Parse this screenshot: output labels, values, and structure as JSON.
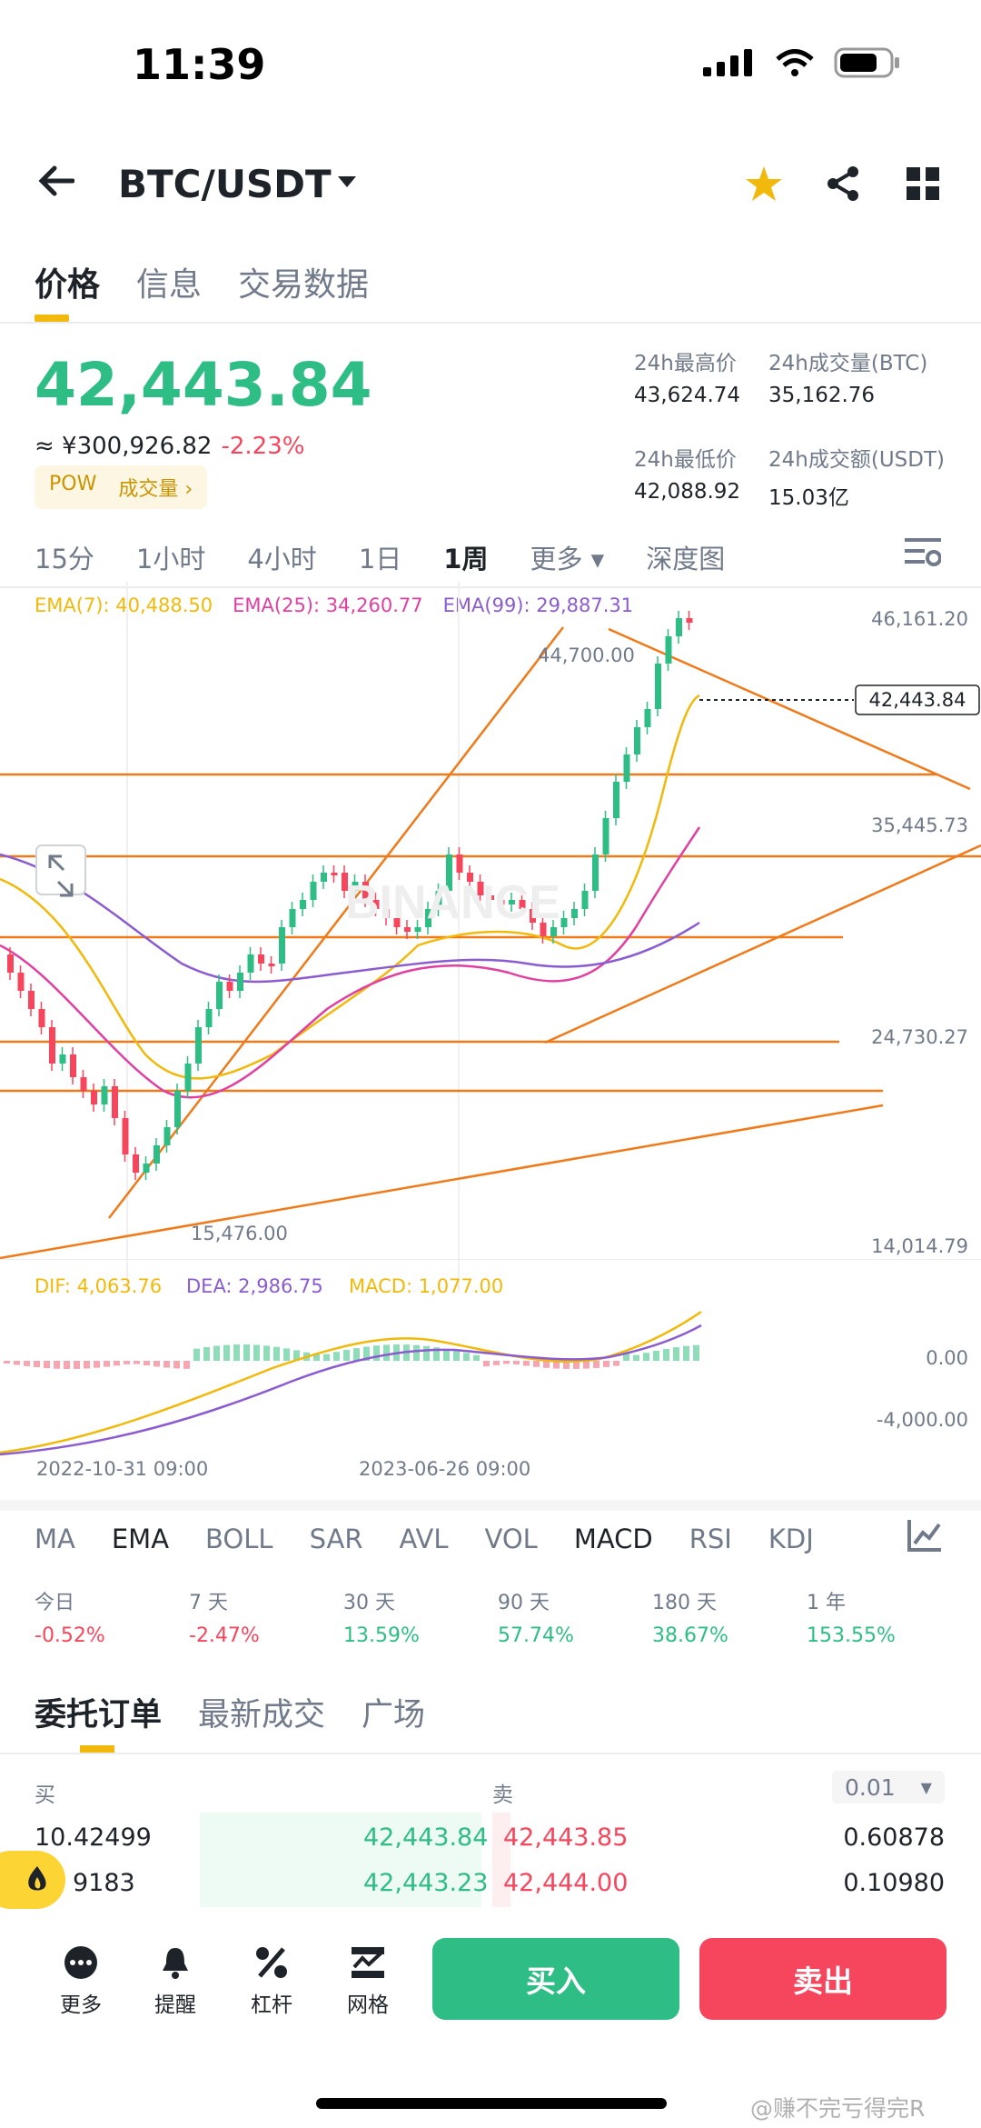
{
  "status": {
    "time": "11:39"
  },
  "header": {
    "pair": "BTC/USDT"
  },
  "tabs": [
    "价格",
    "信息",
    "交易数据"
  ],
  "price": {
    "last": "42,443.84",
    "cny": "≈ ¥300,926.82",
    "change": "-2.23%",
    "tag_pow": "POW",
    "tag_volume": "成交量 ›"
  },
  "stats": [
    {
      "label": "24h最高价",
      "value": "43,624.74"
    },
    {
      "label": "24h成交量(BTC)",
      "value": "35,162.76"
    },
    {
      "label": "24h最低价",
      "value": "42,088.92"
    },
    {
      "label": "24h成交额(USDT)",
      "value": "15.03亿"
    }
  ],
  "intervals": [
    "15分",
    "1小时",
    "4小时",
    "1日",
    "1周",
    "更多 ▾",
    "深度图"
  ],
  "ema_legend": [
    {
      "text": "EMA(7): 40,488.50",
      "color": "#f0b90b"
    },
    {
      "text": "EMA(25): 34,260.77",
      "color": "#e040a0"
    },
    {
      "text": "EMA(99): 29,887.31",
      "color": "#8a5cd0"
    }
  ],
  "chart_data": {
    "type": "candlestick",
    "price_axis_labels": [
      "46,161.20",
      "35,445.73",
      "24,730.27",
      "14,014.79"
    ],
    "annotations": {
      "high_label": "44,700.00",
      "low_label": "15,476.00",
      "current_price": "42,443.84"
    },
    "watermark": "BINANCE",
    "macd": {
      "dif": "DIF: 4,063.76",
      "dea": "DEA: 2,986.75",
      "macd": "MACD: 1,077.00",
      "axis": [
        "0.00",
        "-4,000.00"
      ]
    },
    "time_labels": [
      "2022-10-31 09:00",
      "2023-06-26 09:00"
    ]
  },
  "indicator_tabs": [
    "MA",
    "EMA",
    "BOLL",
    "SAR",
    "AVL",
    "VOL",
    "MACD",
    "RSI",
    "KDJ"
  ],
  "performance": [
    {
      "label": "今日",
      "value": "-0.52%",
      "color": "#f6465d"
    },
    {
      "label": "7 天",
      "value": "-2.47%",
      "color": "#f6465d"
    },
    {
      "label": "30 天",
      "value": "13.59%",
      "color": "#2ebd85"
    },
    {
      "label": "90 天",
      "value": "57.74%",
      "color": "#2ebd85"
    },
    {
      "label": "180 天",
      "value": "38.67%",
      "color": "#2ebd85"
    },
    {
      "label": "1 年",
      "value": "153.55%",
      "color": "#2ebd85"
    }
  ],
  "order_tabs": [
    "委托订单",
    "最新成交",
    "广场"
  ],
  "orderbook": {
    "buy_label": "买",
    "sell_label": "卖",
    "precision": "0.01",
    "rows": [
      {
        "bid_qty": "10.42499",
        "bid": "42,443.84",
        "ask": "42,443.85",
        "ask_qty": "0.60878"
      },
      {
        "bid_qty": "9183",
        "bid": "42,443.23",
        "ask": "42,444.00",
        "ask_qty": "0.10980"
      }
    ]
  },
  "bottom_nav": [
    "更多",
    "提醒",
    "杠杆",
    "网格"
  ],
  "actions": {
    "buy": "买入",
    "sell": "卖出"
  },
  "watermark_text": "@赚不完亏得完R",
  "colors": {
    "up": "#2ebd85",
    "down": "#f6465d",
    "accent": "#f0b90b",
    "trendline": "#f07a1a"
  }
}
